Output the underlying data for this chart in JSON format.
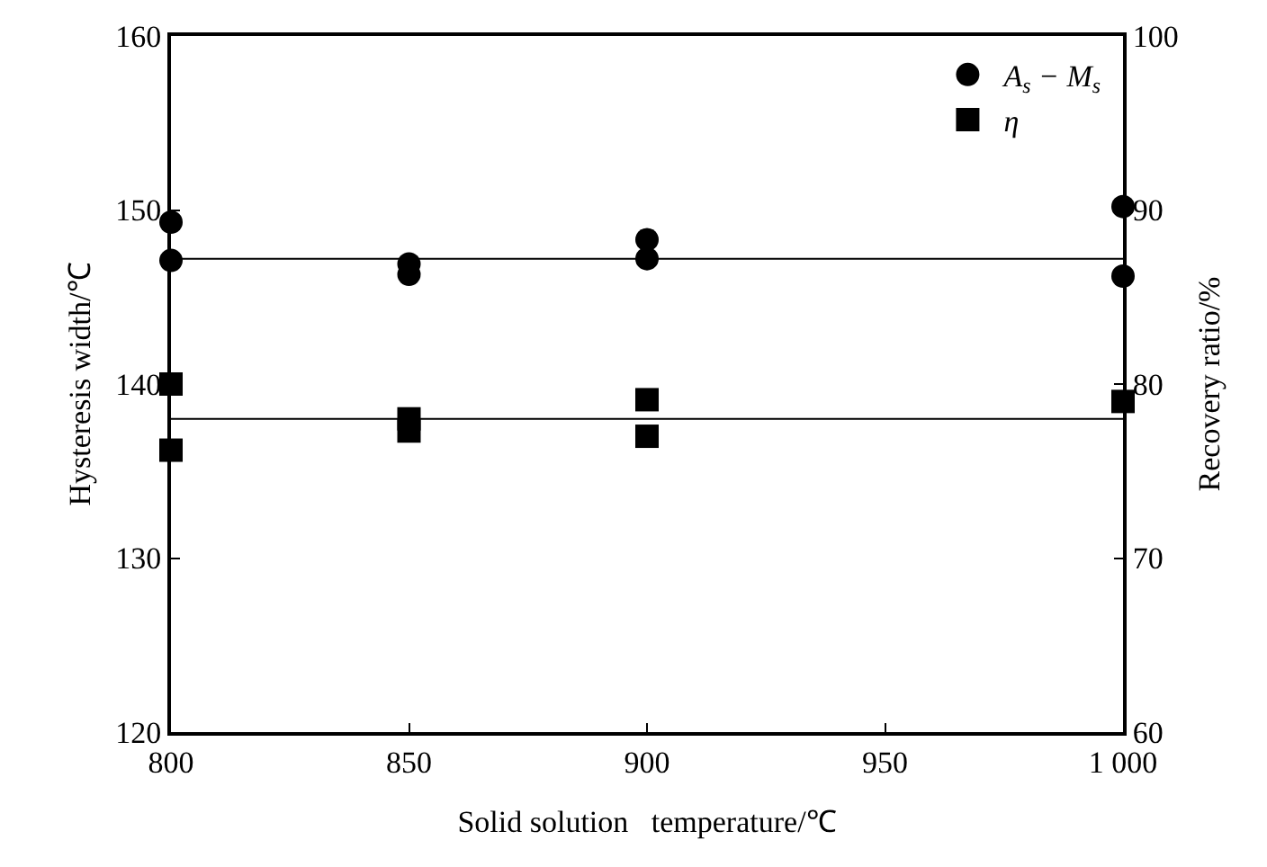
{
  "chart_data": {
    "type": "scatter",
    "xlabel": "Solid solution   temperature/℃",
    "ylabel": "Hysteresis width/℃",
    "y2label": "Recovery ratio/%",
    "xlim": [
      800,
      1000
    ],
    "xticks": [
      800,
      850,
      900,
      950,
      {
        "value": 1000,
        "label": "1 000"
      }
    ],
    "ylim": [
      120,
      160
    ],
    "yticks": [
      120,
      130,
      140,
      150,
      160
    ],
    "y2lim": [
      60,
      100
    ],
    "y2ticks": [
      60,
      70,
      80,
      90,
      100
    ],
    "grid": false,
    "legend": "top right",
    "series": [
      {
        "name": "A$_{s}$ − M$_{s}$",
        "color": "#000000",
        "marker": "circle",
        "x": [
          800,
          800,
          850,
          850,
          900,
          900,
          1000,
          1000
        ],
        "values": [
          149.3,
          147.1,
          146.9,
          146.3,
          148.3,
          147.2,
          150.2,
          146.2
        ]
      },
      {
        "name": "η",
        "color": "#000000",
        "marker": "square",
        "axis": "y2",
        "x": [
          800,
          800,
          850,
          850,
          900,
          900,
          1000
        ],
        "values": [
          80,
          76.2,
          78,
          77.3,
          79.1,
          77,
          79
        ]
      }
    ],
    "ref_lines": [
      {
        "axis": "y",
        "value": 147.2,
        "color": "#000000"
      },
      {
        "axis": "y2",
        "value": 78,
        "color": "#000000"
      }
    ]
  }
}
